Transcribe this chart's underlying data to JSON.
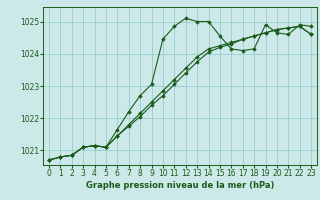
{
  "title": "Graphe pression niveau de la mer (hPa)",
  "background_color": "#cce8e8",
  "grid_color": "#99cccc",
  "line_color": "#1a5c1a",
  "marker_color": "#1a5c1a",
  "xlim": [
    -0.5,
    23.5
  ],
  "ylim": [
    1020.55,
    1025.45
  ],
  "yticks": [
    1021,
    1022,
    1023,
    1024,
    1025
  ],
  "xticks": [
    0,
    1,
    2,
    3,
    4,
    5,
    6,
    7,
    8,
    9,
    10,
    11,
    12,
    13,
    14,
    15,
    16,
    17,
    18,
    19,
    20,
    21,
    22,
    23
  ],
  "series": [
    [
      1020.7,
      1020.8,
      1020.85,
      1021.1,
      1021.15,
      1021.1,
      1021.65,
      1022.2,
      1022.7,
      1023.05,
      1024.45,
      1024.85,
      1025.1,
      1025.0,
      1025.0,
      1024.55,
      1024.15,
      1024.1,
      1024.15,
      1024.9,
      1024.65,
      1024.6,
      1024.9,
      1024.85
    ],
    [
      1020.7,
      1020.8,
      1020.85,
      1021.1,
      1021.15,
      1021.1,
      1021.45,
      1021.75,
      1022.05,
      1022.4,
      1022.7,
      1023.05,
      1023.4,
      1023.75,
      1024.05,
      1024.2,
      1024.3,
      1024.45,
      1024.55,
      1024.65,
      1024.75,
      1024.8,
      1024.85,
      1024.6
    ],
    [
      1020.7,
      1020.8,
      1020.85,
      1021.1,
      1021.15,
      1021.1,
      1021.45,
      1021.8,
      1022.15,
      1022.5,
      1022.85,
      1023.2,
      1023.55,
      1023.9,
      1024.15,
      1024.25,
      1024.35,
      1024.45,
      1024.55,
      1024.65,
      1024.75,
      1024.8,
      1024.85,
      1024.6
    ]
  ]
}
